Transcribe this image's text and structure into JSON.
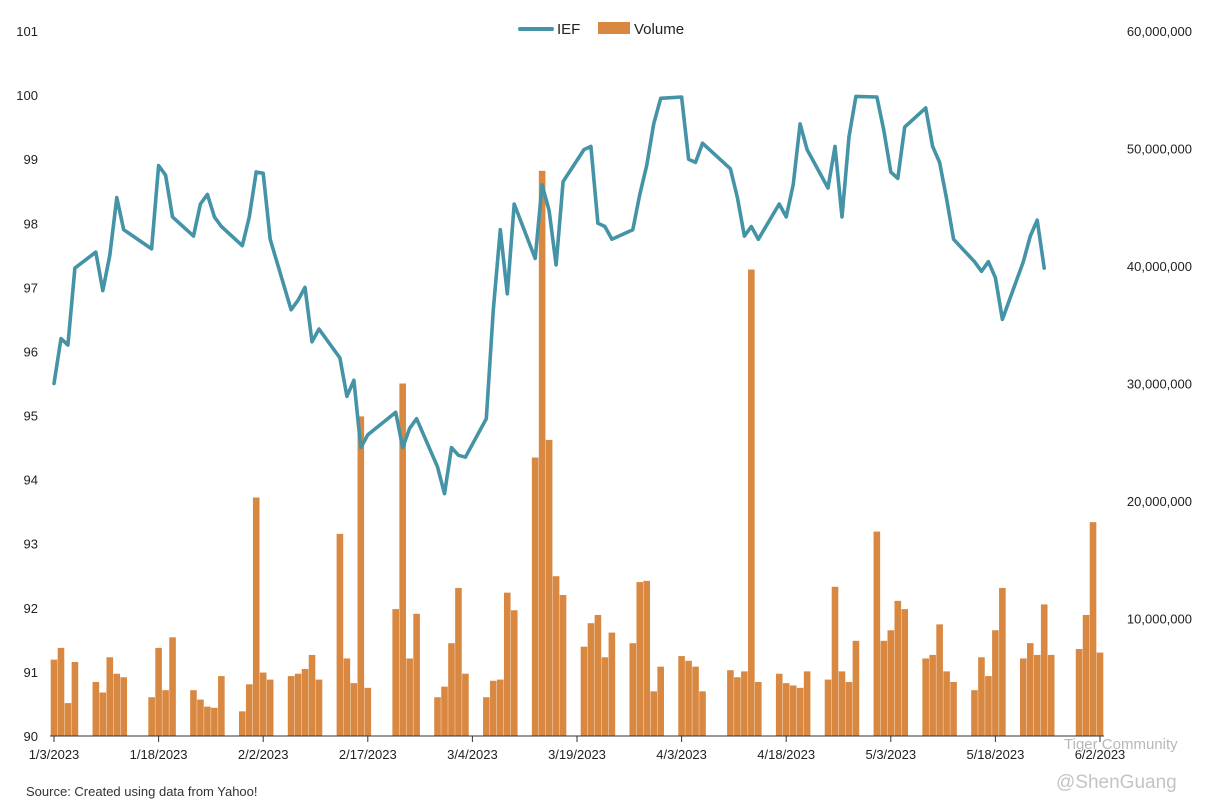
{
  "chart_data": {
    "type": "bar+line",
    "title": "",
    "series": [
      {
        "name": "IEF",
        "type": "line",
        "axis": "left",
        "color": "#4493a6",
        "values": [
          95.5,
          96.2,
          96.1,
          97.3,
          97.55,
          96.95,
          97.5,
          98.4,
          97.9,
          97.6,
          98.9,
          98.75,
          98.1,
          97.8,
          98.3,
          98.45,
          98.1,
          97.95,
          97.65,
          98.1,
          98.8,
          98.78,
          97.75,
          96.65,
          96.8,
          97.0,
          96.15,
          96.35,
          95.9,
          95.3,
          95.55,
          94.5,
          94.7,
          95.05,
          94.5,
          94.8,
          94.95,
          94.2,
          93.78,
          94.5,
          94.38,
          94.35,
          94.95,
          96.65,
          97.9,
          96.9,
          98.3,
          97.45,
          98.6,
          98.2,
          97.35,
          98.65,
          99.15,
          99.2,
          98.0,
          97.95,
          97.75,
          97.9,
          98.45,
          98.9,
          99.55,
          99.95,
          99.97,
          99.0,
          98.95,
          99.25,
          98.85,
          98.4,
          97.8,
          97.95,
          97.75,
          98.3,
          98.1,
          98.6,
          99.55,
          99.15,
          98.55,
          99.2,
          98.1,
          99.35,
          99.98,
          99.97,
          99.45,
          98.8,
          98.7,
          99.5,
          99.8,
          99.2,
          98.95,
          98.38,
          97.75,
          97.4,
          97.25,
          97.4,
          97.15,
          96.5,
          97.4,
          97.8,
          98.05,
          97.3
        ],
        "line_dates": [
          "1/3/2023",
          "1/4/2023",
          "1/5/2023",
          "1/6/2023",
          "1/9/2023",
          "1/10/2023",
          "1/11/2023",
          "1/12/2023",
          "1/13/2023",
          "1/17/2023",
          "1/18/2023",
          "1/19/2023",
          "1/20/2023",
          "1/23/2023",
          "1/24/2023",
          "1/25/2023",
          "1/26/2023",
          "1/27/2023",
          "1/30/2023",
          "1/31/2023",
          "2/1/2023",
          "2/2/2023",
          "2/3/2023",
          "2/6/2023",
          "2/7/2023",
          "2/8/2023",
          "2/9/2023",
          "2/10/2023",
          "2/13/2023",
          "2/14/2023",
          "2/15/2023",
          "2/16/2023",
          "2/17/2023",
          "2/21/2023",
          "2/22/2023",
          "2/23/2023",
          "2/24/2023",
          "2/27/2023",
          "2/28/2023",
          "3/1/2023",
          "3/2/2023",
          "3/3/2023",
          "3/6/2023",
          "3/7/2023",
          "3/8/2023",
          "3/9/2023",
          "3/10/2023",
          "3/13/2023",
          "3/14/2023",
          "3/15/2023",
          "3/16/2023",
          "3/17/2023",
          "3/20/2023",
          "3/21/2023",
          "3/22/2023",
          "3/23/2023",
          "3/24/2023",
          "3/27/2023",
          "3/28/2023",
          "3/29/2023",
          "3/30/2023",
          "3/31/2023",
          "4/3/2023",
          "4/4/2023",
          "4/5/2023",
          "4/6/2023",
          "4/10/2023",
          "4/11/2023",
          "4/12/2023",
          "4/13/2023",
          "4/14/2023",
          "4/17/2023",
          "4/18/2023",
          "4/19/2023",
          "4/20/2023",
          "4/21/2023",
          "4/24/2023",
          "4/25/2023",
          "4/26/2023",
          "4/27/2023",
          "4/28/2023",
          "5/1/2023",
          "5/2/2023",
          "5/3/2023",
          "5/4/2023",
          "5/5/2023",
          "5/8/2023",
          "5/9/2023",
          "5/10/2023",
          "5/11/2023",
          "5/12/2023",
          "5/15/2023",
          "5/16/2023",
          "5/17/2023",
          "5/18/2023",
          "5/19/2023",
          "5/22/2023",
          "5/23/2023",
          "5/24/2023",
          "5/25/2023"
        ]
      },
      {
        "name": "Volume",
        "type": "bar",
        "axis": "right",
        "color": "#d98841",
        "x": [
          "1/3/2023",
          "1/4/2023",
          "1/5/2023",
          "1/6/2023",
          "1/9/2023",
          "1/10/2023",
          "1/11/2023",
          "1/12/2023",
          "1/13/2023",
          "1/17/2023",
          "1/18/2023",
          "1/19/2023",
          "1/20/2023",
          "1/23/2023",
          "1/24/2023",
          "1/25/2023",
          "1/26/2023",
          "1/27/2023",
          "1/30/2023",
          "1/31/2023",
          "2/1/2023",
          "2/2/2023",
          "2/3/2023",
          "2/6/2023",
          "2/7/2023",
          "2/8/2023",
          "2/9/2023",
          "2/10/2023",
          "2/13/2023",
          "2/14/2023",
          "2/15/2023",
          "2/16/2023",
          "2/17/2023",
          "2/21/2023",
          "2/22/2023",
          "2/23/2023",
          "2/24/2023",
          "2/27/2023",
          "2/28/2023",
          "3/1/2023",
          "3/2/2023",
          "3/3/2023",
          "3/6/2023",
          "3/7/2023",
          "3/8/2023",
          "3/9/2023",
          "3/10/2023",
          "3/13/2023",
          "3/14/2023",
          "3/15/2023",
          "3/16/2023",
          "3/17/2023",
          "3/20/2023",
          "3/21/2023",
          "3/22/2023",
          "3/23/2023",
          "3/24/2023",
          "3/27/2023",
          "3/28/2023",
          "3/29/2023",
          "3/30/2023",
          "3/31/2023",
          "4/3/2023",
          "4/4/2023",
          "4/5/2023",
          "4/6/2023",
          "4/10/2023",
          "4/11/2023",
          "4/12/2023",
          "4/13/2023",
          "4/14/2023",
          "4/17/2023",
          "4/18/2023",
          "4/19/2023",
          "4/20/2023",
          "4/21/2023",
          "4/24/2023",
          "4/25/2023",
          "4/26/2023",
          "4/27/2023",
          "4/28/2023",
          "5/1/2023",
          "5/2/2023",
          "5/3/2023",
          "5/4/2023",
          "5/5/2023",
          "5/8/2023",
          "5/9/2023",
          "5/10/2023",
          "5/11/2023",
          "5/12/2023",
          "5/15/2023",
          "5/16/2023",
          "5/17/2023",
          "5/18/2023",
          "5/19/2023",
          "5/22/2023",
          "5/23/2023",
          "5/24/2023",
          "5/25/2023",
          "5/26/2023",
          "5/30/2023",
          "5/31/2023",
          "6/1/2023",
          "6/2/2023"
        ],
        "values": [
          6.5,
          7.5,
          2.8,
          6.3,
          4.6,
          3.7,
          6.7,
          5.3,
          5.0,
          3.3,
          7.5,
          3.9,
          8.4,
          3.9,
          3.1,
          2.5,
          2.4,
          5.1,
          2.1,
          4.4,
          20.3,
          5.4,
          4.8,
          5.1,
          5.3,
          5.7,
          6.9,
          4.8,
          17.2,
          6.6,
          4.5,
          27.2,
          4.1,
          10.8,
          30.0,
          6.6,
          10.4,
          3.3,
          4.2,
          7.9,
          12.6,
          5.3,
          3.3,
          4.7,
          4.8,
          12.2,
          10.7,
          23.7,
          48.1,
          25.2,
          13.6,
          12.0,
          7.6,
          9.6,
          10.3,
          6.7,
          8.8,
          7.9,
          13.1,
          13.2,
          3.8,
          5.9,
          6.8,
          6.4,
          5.9,
          3.8,
          5.6,
          5.0,
          5.5,
          39.7,
          4.6,
          5.3,
          4.5,
          4.3,
          4.1,
          5.5,
          4.8,
          12.7,
          5.5,
          4.6,
          8.1,
          17.4,
          8.1,
          9.0,
          11.5,
          10.8,
          6.6,
          6.9,
          9.5,
          5.5,
          4.6,
          3.9,
          6.7,
          5.1,
          9.0,
          12.6,
          6.6,
          7.9,
          6.9,
          11.2,
          6.9,
          7.4,
          10.3,
          18.2,
          7.1
        ]
      }
    ],
    "y_left": {
      "min": 90,
      "max": 101,
      "ticks": [
        90,
        91,
        92,
        93,
        94,
        95,
        96,
        97,
        98,
        99,
        100,
        101
      ]
    },
    "y_right": {
      "min": 0,
      "max": 60000000,
      "ticks": [
        10000000,
        20000000,
        30000000,
        40000000,
        50000000,
        60000000
      ],
      "tick_labels": [
        "10,000,000",
        "20,000,000",
        "30,000,000",
        "40,000,000",
        "50,000,000",
        "60,000,000"
      ]
    },
    "x_ticks": [
      "1/3/2023",
      "1/18/2023",
      "2/2/2023",
      "2/17/2023",
      "3/4/2023",
      "3/19/2023",
      "4/3/2023",
      "4/18/2023",
      "5/3/2023",
      "5/18/2023",
      "6/2/2023"
    ],
    "legend": {
      "placement": "top-center",
      "entries": [
        "IEF",
        "Volume"
      ]
    },
    "grid": false,
    "source": "Source: Created using data from Yahoo!"
  },
  "watermark": {
    "line1": "Tiger Community",
    "line2": "@ShenGuang"
  }
}
